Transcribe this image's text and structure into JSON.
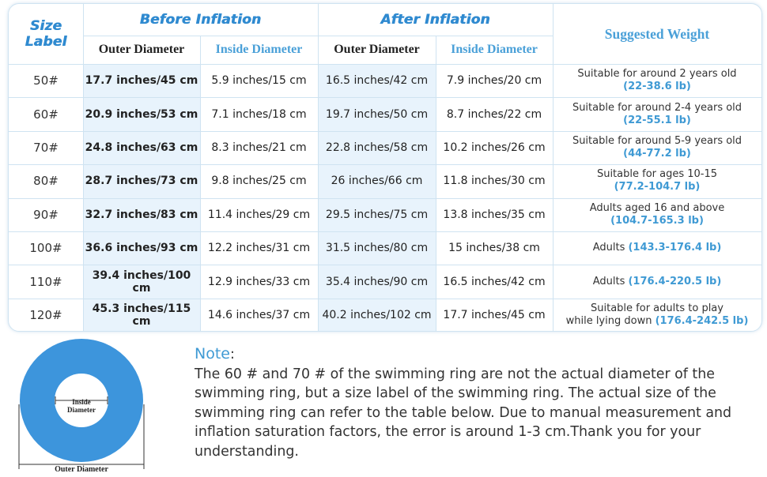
{
  "colors": {
    "accent": "#2f8ad0",
    "weight_text": "#3f9ad4",
    "ring": "#3d95dc",
    "column_shade": "#e8f3fc",
    "border": "#cfe3f1"
  },
  "table": {
    "size_label_line1": "Size",
    "size_label_line2": "Label",
    "before_title": "Before Inflation",
    "after_title": "After Inflation",
    "weight_header": "Suggested Weight",
    "outer_diameter_header": "Outer Diameter",
    "inside_diameter_header": "Inside Diameter",
    "rows": [
      {
        "size": "50#",
        "before_outer": "17.7 inches/45 cm",
        "before_inside": "5.9 inches/15 cm",
        "after_outer": "16.5 inches/42 cm",
        "after_inside": "7.9 inches/20 cm",
        "weight_line1": "Suitable for around 2 years old",
        "weight_range": "(22-38.6 lb)"
      },
      {
        "size": "60#",
        "before_outer": "20.9 inches/53 cm",
        "before_inside": "7.1 inches/18 cm",
        "after_outer": "19.7 inches/50 cm",
        "after_inside": "8.7 inches/22 cm",
        "weight_line1": "Suitable for around 2-4 years old",
        "weight_range": "(22-55.1 lb)"
      },
      {
        "size": "70#",
        "before_outer": "24.8 inches/63 cm",
        "before_inside": "8.3 inches/21 cm",
        "after_outer": "22.8 inches/58 cm",
        "after_inside": "10.2 inches/26 cm",
        "weight_line1": "Suitable for around 5-9 years old",
        "weight_range": "(44-77.2 lb)"
      },
      {
        "size": "80#",
        "before_outer": "28.7 inches/73 cm",
        "before_inside": "9.8 inches/25 cm",
        "after_outer": "26 inches/66 cm",
        "after_inside": "11.8 inches/30 cm",
        "weight_line1": "Suitable for ages 10-15",
        "weight_range": "(77.2-104.7 lb)"
      },
      {
        "size": "90#",
        "before_outer": "32.7 inches/83 cm",
        "before_inside": "11.4 inches/29 cm",
        "after_outer": "29.5 inches/75 cm",
        "after_inside": "13.8 inches/35 cm",
        "weight_line1": "Adults aged 16 and above",
        "weight_range": "(104.7-165.3 lb)"
      },
      {
        "size": "100#",
        "before_outer": "36.6 inches/93 cm",
        "before_inside": "12.2 inches/31 cm",
        "after_outer": "31.5 inches/80 cm",
        "after_inside": "15 inches/38 cm",
        "weight_inline": "Adults",
        "weight_range": "(143.3-176.4 lb)"
      },
      {
        "size": "110#",
        "before_outer": "39.4 inches/100 cm",
        "before_inside": "12.9 inches/33 cm",
        "after_outer": "35.4 inches/90 cm",
        "after_inside": "16.5 inches/42 cm",
        "weight_inline": "Adults",
        "weight_range": "(176.4-220.5 lb)"
      },
      {
        "size": "120#",
        "before_outer": "45.3 inches/115 cm",
        "before_inside": "14.6 inches/37 cm",
        "after_outer": "40.2 inches/102 cm",
        "after_inside": "17.7 inches/45 cm",
        "weight_line1": "Suitable for adults to play",
        "weight_line2": "while lying down",
        "weight_range": "(176.4-242.5 lb)"
      }
    ]
  },
  "diagram": {
    "inside_line1": "Inside",
    "inside_line2": "Diameter",
    "outer_label": "Outer Diameter"
  },
  "note": {
    "title": "Note",
    "colon": ":",
    "body": "The 60 # and 70 # of the swimming ring are not the actual diameter of the swimming ring, but a size label of the swimming ring. The actual size of the swimming ring can refer to the table below. Due to manual measurement and inflation saturation factors, the error is around 1-3 cm.Thank you for your understanding."
  }
}
